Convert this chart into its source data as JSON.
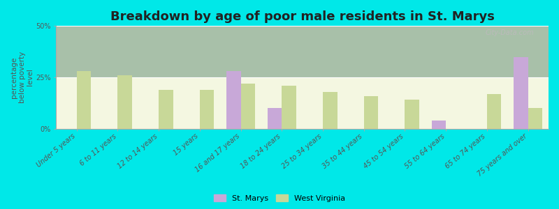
{
  "title": "Breakdown by age of poor male residents in St. Marys",
  "ylabel": "percentage\nbelow poverty\nlevel",
  "categories": [
    "Under 5 years",
    "6 to 11 years",
    "12 to 14 years",
    "15 years",
    "16 and 17 years",
    "18 to 24 years",
    "25 to 34 years",
    "35 to 44 years",
    "45 to 54 years",
    "55 to 64 years",
    "65 to 74 years",
    "75 years and over"
  ],
  "st_marys": [
    0,
    0,
    0,
    0,
    28.0,
    10.0,
    0,
    0,
    0,
    4.0,
    0,
    35.0
  ],
  "west_virginia": [
    28.0,
    26.0,
    19.0,
    19.0,
    22.0,
    21.0,
    18.0,
    16.0,
    14.0,
    0,
    17.0,
    10.0
  ],
  "color_st_marys": "#c8a8d8",
  "color_west_virginia": "#c8d898",
  "bg_plot_top": "#f0f5e0",
  "bg_plot_bottom": "#d8eecc",
  "bg_outer": "#00e8e8",
  "ylim": [
    0,
    50
  ],
  "yticks": [
    0,
    25,
    50
  ],
  "ytick_labels": [
    "0%",
    "25%",
    "50%"
  ],
  "bar_width": 0.35,
  "title_fontsize": 13,
  "ylabel_fontsize": 7.5,
  "tick_fontsize": 7,
  "legend_st_marys": "St. Marys",
  "legend_west_virginia": "West Virginia"
}
